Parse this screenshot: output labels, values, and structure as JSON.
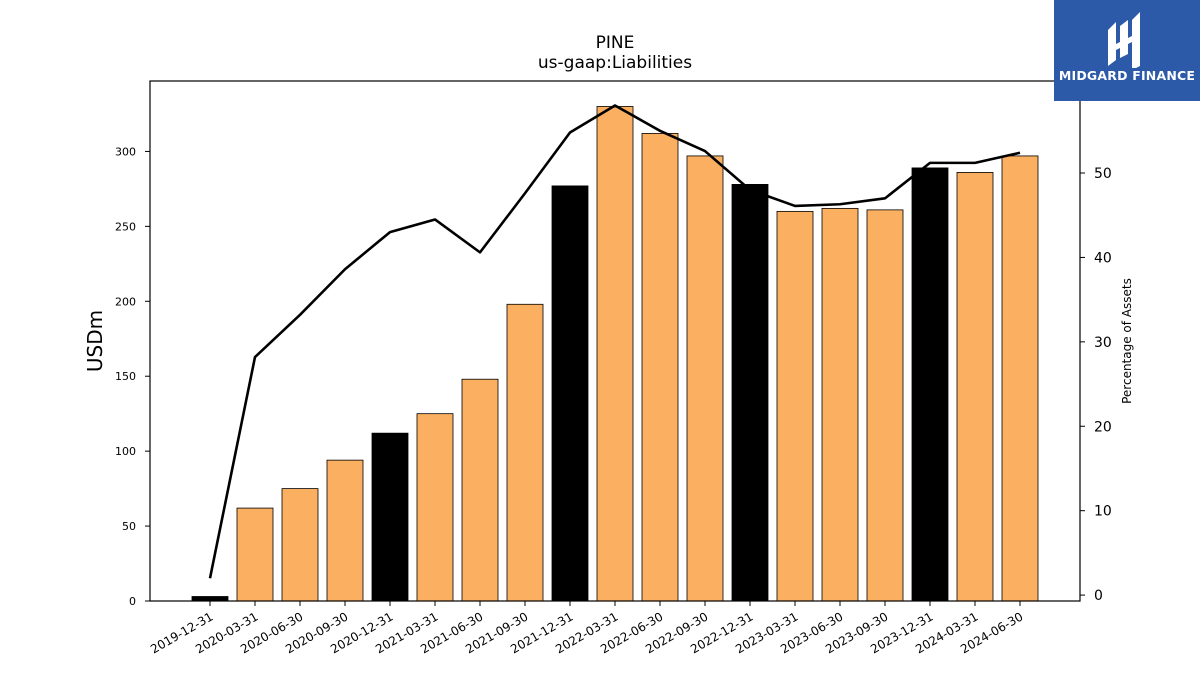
{
  "chart_data": {
    "type": "bar",
    "title": "PINE",
    "subtitle": "us-gaap:Liabilities",
    "ylabel": "USDm",
    "y2label": "Percentage of Assets",
    "ylim": [
      0,
      347
    ],
    "y2lim": [
      -0.7,
      60.9
    ],
    "yticks": [
      0,
      50,
      100,
      150,
      200,
      250,
      300
    ],
    "y2ticks": [
      0,
      10,
      20,
      30,
      40,
      50
    ],
    "categories": [
      "2019-12-31",
      "2020-03-31",
      "2020-06-30",
      "2020-09-30",
      "2020-12-31",
      "2021-03-31",
      "2021-06-30",
      "2021-09-30",
      "2021-12-31",
      "2022-03-31",
      "2022-06-30",
      "2022-09-30",
      "2022-12-31",
      "2023-03-31",
      "2023-06-30",
      "2023-09-30",
      "2023-12-31",
      "2024-03-31",
      "2024-06-30"
    ],
    "series": [
      {
        "kind": "bar",
        "values": [
          3,
          62,
          75,
          94,
          112,
          125,
          148,
          198,
          277,
          330,
          312,
          297,
          278,
          260,
          262,
          261,
          289,
          286,
          297
        ],
        "colors": [
          "#000000",
          "#fbb061",
          "#fbb061",
          "#fbb061",
          "#000000",
          "#fbb061",
          "#fbb061",
          "#fbb061",
          "#000000",
          "#fbb061",
          "#fbb061",
          "#fbb061",
          "#000000",
          "#fbb061",
          "#fbb061",
          "#fbb061",
          "#000000",
          "#fbb061",
          "#fbb061"
        ]
      },
      {
        "kind": "line",
        "axis": "right",
        "color": "#000000",
        "values": [
          2.0,
          28.2,
          33.2,
          38.6,
          43.0,
          44.5,
          40.6,
          47.6,
          54.8,
          58.0,
          55.0,
          52.6,
          48.0,
          46.1,
          46.3,
          47.0,
          51.2,
          51.2,
          52.4
        ]
      }
    ]
  },
  "logo": {
    "text": "MIDGARD FINANCE",
    "background": "#2c5aa8"
  }
}
